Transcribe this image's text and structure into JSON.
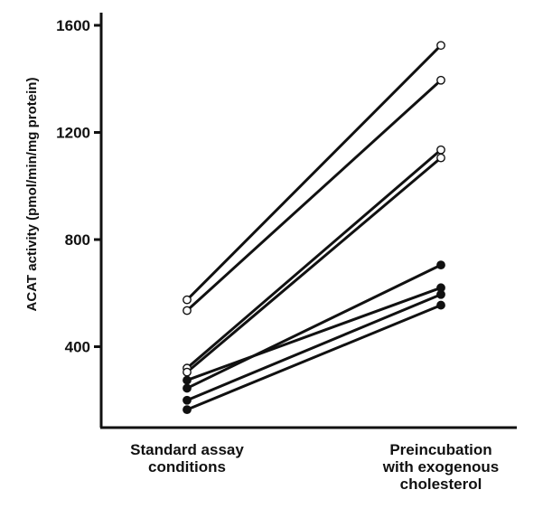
{
  "chart_data": {
    "type": "line",
    "title": "",
    "xlabel": "",
    "ylabel": "ACAT activity (pmol/min/mg protein)",
    "ylim": [
      0,
      1650
    ],
    "yticks": [
      400,
      800,
      1200,
      1600
    ],
    "categories": [
      [
        "Standard assay",
        "conditions"
      ],
      [
        "Preincubation",
        "with exogenous",
        "cholesterol"
      ]
    ],
    "marker_colors": {
      "open": "#ffffff",
      "filled": "#111111",
      "line": "#111111"
    },
    "series": [
      {
        "marker": "open",
        "values": [
          575,
          1525
        ]
      },
      {
        "marker": "open",
        "values": [
          535,
          1395
        ]
      },
      {
        "marker": "open",
        "values": [
          320,
          1135
        ]
      },
      {
        "marker": "open",
        "values": [
          305,
          1105
        ]
      },
      {
        "marker": "filled",
        "values": [
          275,
          620
        ]
      },
      {
        "marker": "filled",
        "values": [
          245,
          705
        ]
      },
      {
        "marker": "filled",
        "values": [
          200,
          595
        ]
      },
      {
        "marker": "filled",
        "values": [
          165,
          555
        ]
      }
    ]
  }
}
